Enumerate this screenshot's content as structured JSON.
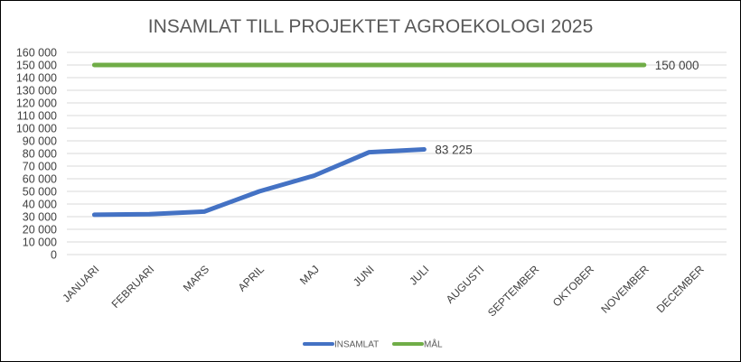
{
  "chart_data": {
    "type": "line",
    "title": "INSAMLAT TILL PROJEKTET AGROEKOLOGI 2025",
    "categories": [
      "JANUARI",
      "FEBRUARI",
      "MARS",
      "APRIL",
      "MAJ",
      "JUNI",
      "JULI",
      "AUGUSTI",
      "SEPTEMBER",
      "OKTOBER",
      "NOVEMBER",
      "DECEMBER"
    ],
    "yticks": [
      "0",
      "10 000",
      "20 000",
      "30 000",
      "40 000",
      "50 000",
      "60 000",
      "70 000",
      "80 000",
      "90 000",
      "100 000",
      "110 000",
      "120 000",
      "130 000",
      "140 000",
      "150 000",
      "160 000"
    ],
    "ylim": [
      0,
      160000
    ],
    "grid": true,
    "legend_position": "bottom",
    "series": [
      {
        "name": "INSAMLAT",
        "color": "#4472C4",
        "values": [
          31500,
          32000,
          34000,
          50000,
          62500,
          81000,
          83225,
          null,
          null,
          null,
          null,
          null
        ],
        "data_label": "83 225",
        "data_label_index": 6
      },
      {
        "name": "MÅL",
        "color": "#70AD47",
        "values": [
          150000,
          150000,
          150000,
          150000,
          150000,
          150000,
          150000,
          150000,
          150000,
          150000,
          150000,
          null
        ],
        "data_label": "150 000",
        "data_label_index": 10
      }
    ]
  }
}
